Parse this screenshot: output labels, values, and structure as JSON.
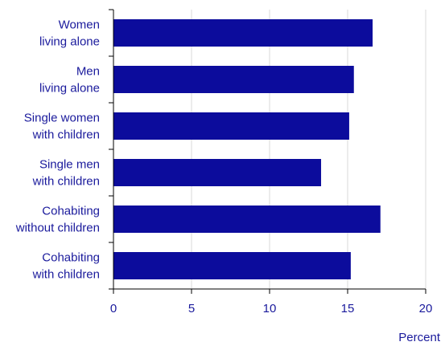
{
  "chart_data": {
    "type": "bar",
    "orientation": "horizontal",
    "categories": [
      [
        "Women",
        "living alone"
      ],
      [
        "Men",
        "living alone"
      ],
      [
        "Single women",
        "with children"
      ],
      [
        "Single men",
        "with children"
      ],
      [
        "Cohabiting",
        "without children"
      ],
      [
        "Cohabiting",
        "with children"
      ]
    ],
    "values": [
      16.6,
      15.4,
      15.1,
      13.3,
      17.1,
      15.2
    ],
    "xlabel": "Percent",
    "ylabel": "",
    "title": "",
    "xlim": [
      0,
      20
    ],
    "xticks": [
      "0",
      "5",
      "10",
      "15",
      "20"
    ],
    "grid": "vertical",
    "legend": "none",
    "colors": {
      "bar": "#0c0c9c",
      "text": "#1a1a9c",
      "grid": "#d9d9d9",
      "axis": "#000000"
    }
  }
}
